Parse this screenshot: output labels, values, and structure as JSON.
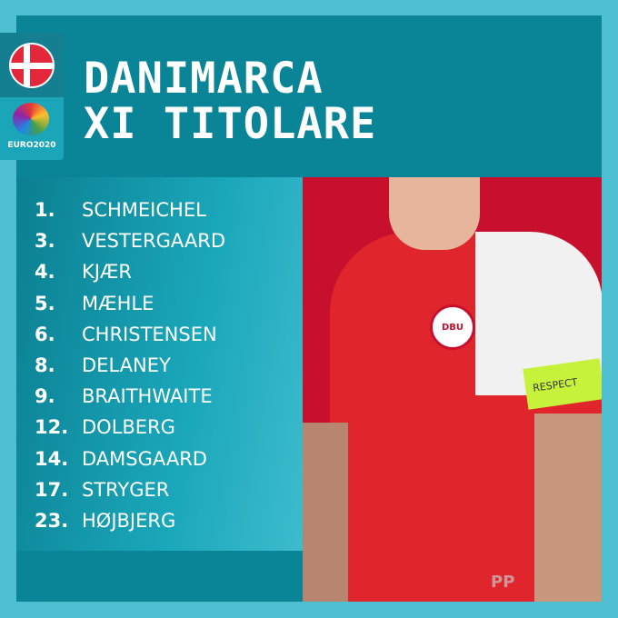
{
  "header": {
    "title_line1": "DANIMARCA",
    "title_line2": "XI TITOLARE"
  },
  "badges": {
    "flag": "denmark-flag",
    "logo_text": "EURO2020"
  },
  "lineup": [
    {
      "number": "1.",
      "name": "SCHMEICHEL"
    },
    {
      "number": "3.",
      "name": "VESTERGAARD"
    },
    {
      "number": "4.",
      "name": "KJÆR"
    },
    {
      "number": "5.",
      "name": "MÆHLE"
    },
    {
      "number": "6.",
      "name": "CHRISTENSEN"
    },
    {
      "number": "8.",
      "name": "DELANEY"
    },
    {
      "number": "9.",
      "name": "BRAITHWAITE"
    },
    {
      "number": "12.",
      "name": "DOLBERG"
    },
    {
      "number": "14.",
      "name": "DAMSGAARD"
    },
    {
      "number": "17.",
      "name": "STRYGER"
    },
    {
      "number": "23.",
      "name": "HØJBJERG"
    }
  ],
  "photo": {
    "crest_text": "DBU",
    "armband_text": "RESPECT"
  },
  "watermark": "PP",
  "colors": {
    "background": "#4dbfd1",
    "panel": "#0a8597",
    "shirt": "#e0262c"
  }
}
